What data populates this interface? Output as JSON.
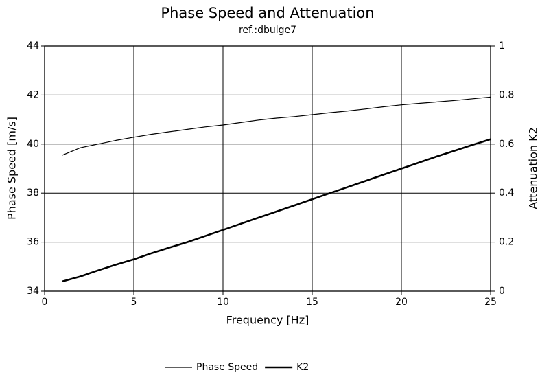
{
  "chart_data": {
    "type": "line",
    "title": "Phase Speed and Attenuation",
    "subtitle": "ref.:dbulge7",
    "xlabel": "Frequency [Hz]",
    "ylabel": "Phase Speed [m/s]",
    "y2label": "Attenuation K2",
    "x": [
      1,
      2,
      3,
      4,
      5,
      6,
      7,
      8,
      9,
      10,
      11,
      12,
      13,
      14,
      15,
      16,
      17,
      18,
      19,
      20,
      21,
      22,
      23,
      24,
      25
    ],
    "series": [
      {
        "name": "Phase Speed",
        "color": "#000000",
        "linewidth": 1.2,
        "axis": "y",
        "values": [
          39.55,
          39.85,
          40.0,
          40.15,
          40.28,
          40.4,
          40.5,
          40.6,
          40.7,
          40.78,
          40.88,
          40.98,
          41.06,
          41.12,
          41.2,
          41.28,
          41.35,
          41.43,
          41.52,
          41.6,
          41.66,
          41.72,
          41.78,
          41.85,
          41.92
        ]
      },
      {
        "name": "K2",
        "color": "#000000",
        "linewidth": 2.6,
        "axis": "y2",
        "values": [
          0.04,
          0.06,
          0.085,
          0.108,
          0.13,
          0.155,
          0.178,
          0.2,
          0.225,
          0.25,
          0.275,
          0.3,
          0.325,
          0.35,
          0.375,
          0.4,
          0.425,
          0.45,
          0.475,
          0.5,
          0.525,
          0.55,
          0.573,
          0.597,
          0.62
        ]
      }
    ],
    "xlim": [
      0,
      25
    ],
    "xticks": [
      0,
      5,
      10,
      15,
      20,
      25
    ],
    "ylim": [
      34,
      44
    ],
    "yticks": [
      34,
      36,
      38,
      40,
      42,
      44
    ],
    "y2lim": [
      0,
      1
    ],
    "y2ticks": [
      0,
      0.2,
      0.4,
      0.6,
      0.8,
      1
    ],
    "grid": true,
    "legend": "bottom"
  }
}
